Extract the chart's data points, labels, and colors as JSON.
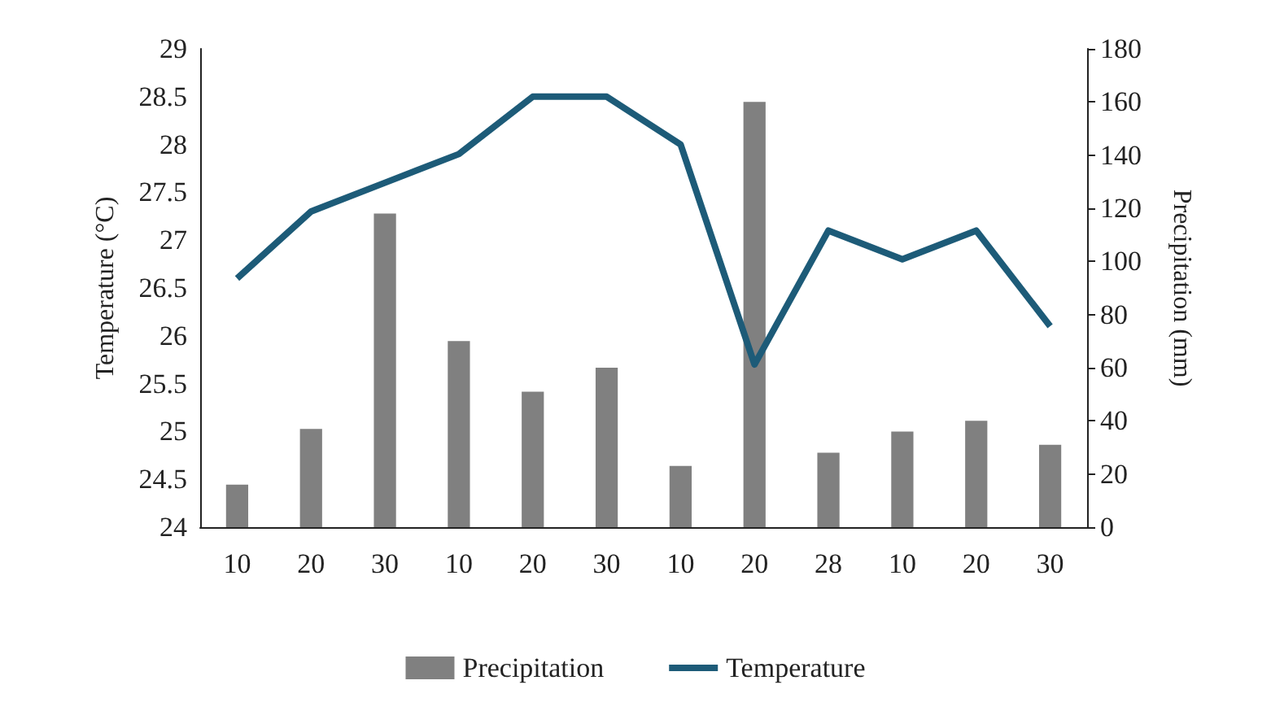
{
  "chart_data": {
    "type": "bar",
    "categories": [
      "10",
      "20",
      "30",
      "10",
      "20",
      "30",
      "10",
      "20",
      "28",
      "10",
      "20",
      "30"
    ],
    "ylabel": "Temperature (°C)",
    "y2label": "Precipitation (mm)",
    "series": [
      {
        "name": "Precipitation",
        "axis": "y2",
        "color": "#808080",
        "values": [
          16,
          37,
          118,
          70,
          51,
          60,
          23,
          160,
          28,
          36,
          40,
          31
        ]
      },
      {
        "name": "Temperature",
        "type": "line",
        "color": "#1d5b78",
        "values": [
          26.6,
          27.3,
          27.6,
          27.9,
          28.5,
          28.5,
          28.0,
          25.7,
          27.1,
          26.8,
          27.1,
          26.1
        ]
      }
    ],
    "ylim": [
      24,
      29
    ],
    "yticks": [
      24,
      24.5,
      25,
      25.5,
      26,
      26.5,
      27,
      27.5,
      28,
      28.5,
      29
    ],
    "y2lim": [
      0,
      180
    ],
    "y2ticks": [
      0,
      20,
      40,
      60,
      80,
      100,
      120,
      140,
      160,
      180
    ],
    "grid": false,
    "legend": "bottom",
    "marker": "none",
    "line_style": "solid"
  }
}
